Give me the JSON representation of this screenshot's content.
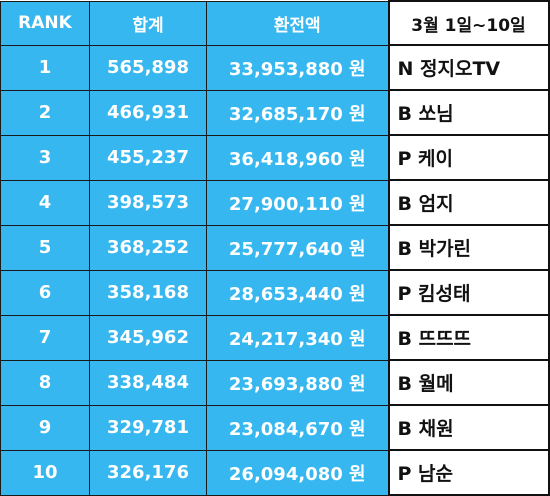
{
  "columns": {
    "rank": "RANK",
    "total": "합계",
    "exchange": "환전액",
    "period": "3월 1일~10일"
  },
  "rows": [
    {
      "rank": "1",
      "total": "565,898",
      "exchange": "33,953,880 원",
      "bj": "N 정지오TV"
    },
    {
      "rank": "2",
      "total": "466,931",
      "exchange": "32,685,170 원",
      "bj": "B 쏘님"
    },
    {
      "rank": "3",
      "total": "455,237",
      "exchange": "36,418,960 원",
      "bj": "P 케이"
    },
    {
      "rank": "4",
      "total": "398,573",
      "exchange": "27,900,110 원",
      "bj": "B 엄지"
    },
    {
      "rank": "5",
      "total": "368,252",
      "exchange": "25,777,640 원",
      "bj": "B 박가린"
    },
    {
      "rank": "6",
      "total": "358,168",
      "exchange": "28,653,440 원",
      "bj": "P 킴성태"
    },
    {
      "rank": "7",
      "total": "345,962",
      "exchange": "24,217,340 원",
      "bj": "B 뜨뜨뜨"
    },
    {
      "rank": "8",
      "total": "338,484",
      "exchange": "23,693,880 원",
      "bj": "B 월메"
    },
    {
      "rank": "9",
      "total": "329,781",
      "exchange": "23,084,670 원",
      "bj": "B 채원"
    },
    {
      "rank": "10",
      "total": "326,176",
      "exchange": "26,094,080 원",
      "bj": "P 남순"
    }
  ],
  "colors": {
    "accent": "#36b7ef",
    "text_on_accent": "#ffffff",
    "border": "#111111"
  }
}
